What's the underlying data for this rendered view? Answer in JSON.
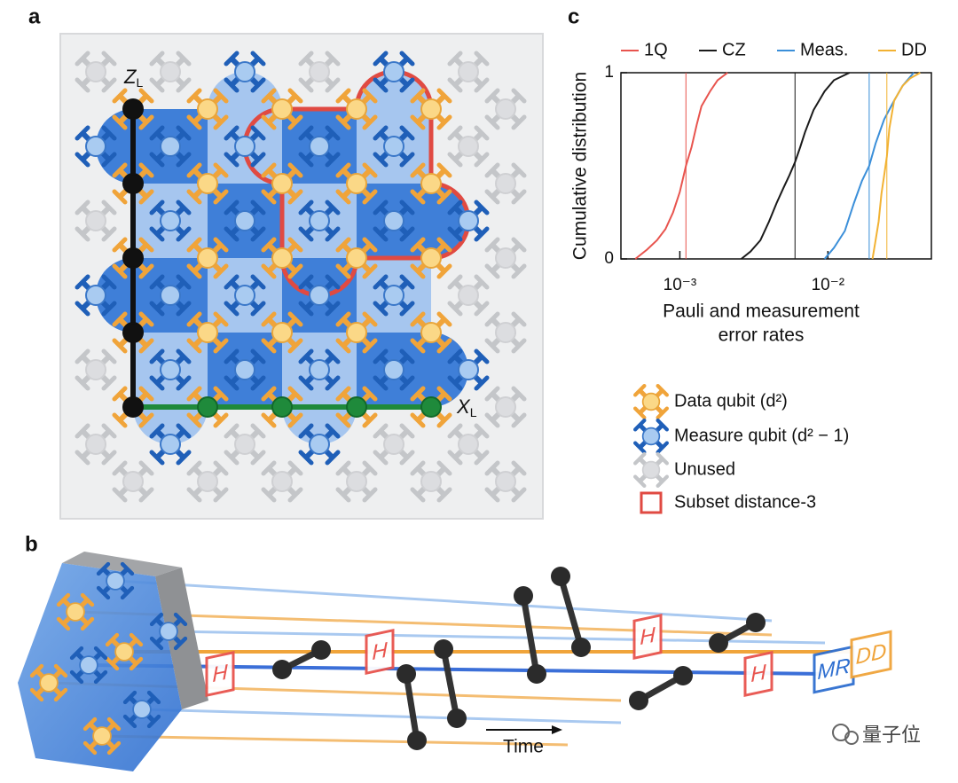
{
  "panels": [
    "a",
    "b",
    "c"
  ],
  "diagram_a": {
    "z_logical": {
      "symbol": "Z",
      "subscript": "L"
    },
    "x_logical": {
      "symbol": "X",
      "subscript": "L"
    }
  },
  "legend": [
    "Data qubit (d²)",
    "Measure qubit (d² − 1)",
    "Unused",
    "Subset distance-3"
  ],
  "diagram_b": {
    "gate_h": "H",
    "measure_reset": "MR",
    "dynamical_decoupling": "DD",
    "time_label": "Time"
  },
  "watermark": "量子位",
  "chart_data": {
    "type": "line",
    "ylabel": "Cumulative distribution",
    "xlabel": [
      "Pauli and measurement",
      "error rates"
    ],
    "xscale": "log",
    "xlim": [
      0.0004,
      0.05
    ],
    "ylim": [
      0,
      1
    ],
    "xticks": [
      {
        "value": 0.001,
        "label": "10⁻³"
      },
      {
        "value": 0.01,
        "label": "10⁻²"
      }
    ],
    "yticks": [
      0,
      1
    ],
    "legend_position": "top",
    "series": [
      {
        "name": "1Q",
        "color": "#e8544e",
        "x": [
          0.0005,
          0.0006,
          0.0007,
          0.0008,
          0.0009,
          0.001,
          0.0011,
          0.0012,
          0.0013,
          0.0014,
          0.0016,
          0.0018,
          0.0021
        ],
        "values": [
          0,
          0.05,
          0.1,
          0.16,
          0.25,
          0.36,
          0.5,
          0.6,
          0.72,
          0.82,
          0.9,
          0.96,
          1
        ],
        "median": 0.0011
      },
      {
        "name": "CZ",
        "color": "#1a1a1a",
        "x": [
          0.0026,
          0.003,
          0.0035,
          0.004,
          0.0045,
          0.005,
          0.0055,
          0.006,
          0.0065,
          0.007,
          0.008,
          0.0095,
          0.011,
          0.014
        ],
        "values": [
          0,
          0.04,
          0.1,
          0.2,
          0.3,
          0.38,
          0.45,
          0.52,
          0.6,
          0.68,
          0.8,
          0.9,
          0.96,
          1
        ],
        "median": 0.006
      },
      {
        "name": "Meas.",
        "color": "#3b8fd9",
        "x": [
          0.0095,
          0.011,
          0.013,
          0.015,
          0.017,
          0.019,
          0.021,
          0.024,
          0.028,
          0.032,
          0.038
        ],
        "values": [
          0,
          0.06,
          0.15,
          0.3,
          0.42,
          0.5,
          0.62,
          0.75,
          0.85,
          0.93,
          1
        ],
        "median": 0.019
      },
      {
        "name": "DD",
        "color": "#f2b233",
        "x": [
          0.02,
          0.021,
          0.022,
          0.023,
          0.024,
          0.025,
          0.026,
          0.028,
          0.032,
          0.036,
          0.042
        ],
        "values": [
          0,
          0.1,
          0.2,
          0.35,
          0.45,
          0.55,
          0.7,
          0.85,
          0.93,
          0.97,
          1
        ],
        "median": 0.025
      }
    ]
  }
}
